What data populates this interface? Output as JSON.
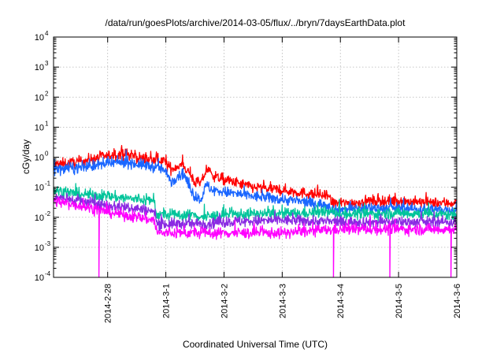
{
  "chart_data": {
    "type": "line",
    "title": "/data/run/goesPlots/archive/2014-03-05/flux/../bryn/7daysEarthData.plot",
    "xlabel": "Coordinated Universal Time (UTC)",
    "ylabel": "cGy/day",
    "x_ticks": [
      "2014-2-28",
      "2014-3-1",
      "2014-3-2",
      "2014-3-3",
      "2014-3-4",
      "2014-3-5",
      "2014-3-6"
    ],
    "y_scale": "log",
    "y_ticks": [
      {
        "base": "10",
        "exp": "-4"
      },
      {
        "base": "10",
        "exp": "-3"
      },
      {
        "base": "10",
        "exp": "-2"
      },
      {
        "base": "10",
        "exp": "-1"
      },
      {
        "base": "10",
        "exp": "0"
      },
      {
        "base": "10",
        "exp": "1"
      },
      {
        "base": "10",
        "exp": "2"
      },
      {
        "base": "10",
        "exp": "3"
      },
      {
        "base": "10",
        "exp": "4"
      }
    ],
    "xlim_days": [
      -0.93,
      6.0
    ],
    "ylim_log10": [
      -4,
      4
    ],
    "grid": true,
    "series": [
      {
        "color": "#ff0000",
        "profile": [
          [
            -0.93,
            0.55
          ],
          [
            -0.5,
            0.7
          ],
          [
            0.0,
            1.1
          ],
          [
            0.3,
            1.3
          ],
          [
            0.5,
            1.0
          ],
          [
            0.75,
            0.8
          ],
          [
            0.95,
            0.8
          ],
          [
            1.0,
            0.6
          ],
          [
            1.1,
            0.4
          ],
          [
            1.2,
            0.5
          ],
          [
            1.3,
            0.55
          ],
          [
            1.4,
            0.3
          ],
          [
            1.5,
            0.15
          ],
          [
            1.6,
            0.13
          ],
          [
            1.7,
            0.4
          ],
          [
            1.8,
            0.25
          ],
          [
            2.0,
            0.18
          ],
          [
            2.5,
            0.1
          ],
          [
            3.0,
            0.08
          ],
          [
            3.5,
            0.06
          ],
          [
            3.8,
            0.05
          ],
          [
            3.85,
            0.03
          ],
          [
            4.2,
            0.03
          ],
          [
            4.5,
            0.035
          ],
          [
            5.0,
            0.035
          ],
          [
            5.5,
            0.03
          ],
          [
            6.0,
            0.03
          ]
        ]
      },
      {
        "color": "#1a66ff",
        "profile": [
          [
            -0.93,
            0.4
          ],
          [
            -0.5,
            0.45
          ],
          [
            0.0,
            0.6
          ],
          [
            0.3,
            0.7
          ],
          [
            0.5,
            0.6
          ],
          [
            0.75,
            0.5
          ],
          [
            0.95,
            0.4
          ],
          [
            1.0,
            0.3
          ],
          [
            1.1,
            0.15
          ],
          [
            1.2,
            0.25
          ],
          [
            1.3,
            0.3
          ],
          [
            1.4,
            0.1
          ],
          [
            1.5,
            0.05
          ],
          [
            1.6,
            0.04
          ],
          [
            1.7,
            0.12
          ],
          [
            1.8,
            0.08
          ],
          [
            2.0,
            0.07
          ],
          [
            2.5,
            0.05
          ],
          [
            3.0,
            0.04
          ],
          [
            3.5,
            0.03
          ],
          [
            3.8,
            0.025
          ],
          [
            3.85,
            0.018
          ],
          [
            4.5,
            0.02
          ],
          [
            5.0,
            0.02
          ],
          [
            5.5,
            0.018
          ],
          [
            6.0,
            0.018
          ]
        ]
      },
      {
        "color": "#00c49a",
        "profile": [
          [
            -0.93,
            0.08
          ],
          [
            -0.5,
            0.06
          ],
          [
            0.0,
            0.05
          ],
          [
            0.5,
            0.04
          ],
          [
            0.8,
            0.035
          ],
          [
            0.85,
            0.012
          ],
          [
            1.5,
            0.012
          ],
          [
            1.6,
            0.01
          ],
          [
            2.0,
            0.012
          ],
          [
            2.5,
            0.013
          ],
          [
            3.0,
            0.013
          ],
          [
            3.5,
            0.014
          ],
          [
            3.8,
            0.015
          ],
          [
            4.0,
            0.013
          ],
          [
            4.5,
            0.013
          ],
          [
            5.0,
            0.014
          ],
          [
            5.5,
            0.013
          ],
          [
            6.0,
            0.012
          ]
        ]
      },
      {
        "color": "#8a2be2",
        "profile": [
          [
            -0.93,
            0.05
          ],
          [
            -0.5,
            0.035
          ],
          [
            0.0,
            0.025
          ],
          [
            0.5,
            0.02
          ],
          [
            0.8,
            0.015
          ],
          [
            0.85,
            0.006
          ],
          [
            1.5,
            0.006
          ],
          [
            2.0,
            0.007
          ],
          [
            3.0,
            0.008
          ],
          [
            4.0,
            0.007
          ],
          [
            5.0,
            0.007
          ],
          [
            6.0,
            0.007
          ]
        ]
      },
      {
        "color": "#ff00ff",
        "profile": [
          [
            -0.93,
            0.035
          ],
          [
            -0.5,
            0.025
          ],
          [
            0.0,
            0.015
          ],
          [
            0.5,
            0.01
          ],
          [
            0.8,
            0.008
          ],
          [
            0.85,
            0.003
          ],
          [
            1.5,
            0.003
          ],
          [
            2.0,
            0.003
          ],
          [
            3.0,
            0.003
          ],
          [
            4.0,
            0.004
          ],
          [
            5.0,
            0.004
          ],
          [
            6.0,
            0.004
          ]
        ],
        "drops": [
          -0.15,
          3.88,
          4.85,
          5.9
        ]
      }
    ]
  }
}
